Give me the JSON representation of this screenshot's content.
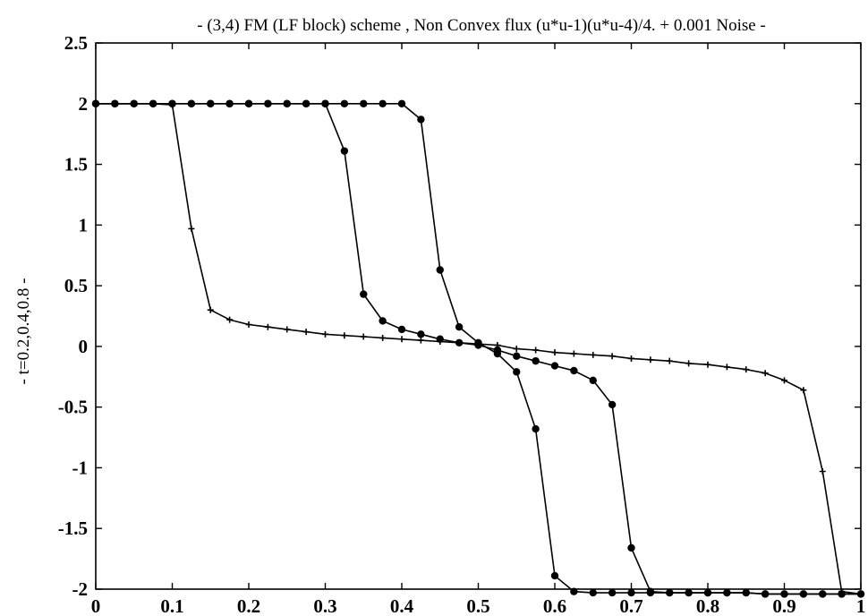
{
  "chart_data": {
    "type": "line",
    "title": "- (3,4) FM (LF block) scheme , Non Convex flux (u*u-1)(u*u-4)/4. + 0.001 Noise -",
    "xlabel": "",
    "ylabel": "- t=0.2,0.4,0.8 -",
    "xlim": [
      0,
      1
    ],
    "ylim": [
      -2,
      2.5
    ],
    "x_ticks": [
      "0",
      "0.1",
      "0.2",
      "0.3",
      "0.4",
      "0.5",
      "0.6",
      "0.7",
      "0.8",
      "0.9",
      "1"
    ],
    "y_ticks": [
      "2.5",
      "2",
      "1.5",
      "1",
      "0.5",
      "0",
      "-0.5",
      "-1",
      "-1.5",
      "-2"
    ],
    "grid": false,
    "series": [
      {
        "marker": "dot",
        "x": [
          0,
          0.025,
          0.05,
          0.075,
          0.1,
          0.125,
          0.15,
          0.175,
          0.2,
          0.225,
          0.25,
          0.275,
          0.3,
          0.325,
          0.35,
          0.375,
          0.4,
          0.425,
          0.45,
          0.475,
          0.5,
          0.525,
          0.55,
          0.575,
          0.6,
          0.625,
          0.65,
          0.675,
          0.7,
          0.725,
          0.75,
          0.775,
          0.8,
          0.825,
          0.85,
          0.875,
          0.9,
          0.925,
          0.95,
          0.975,
          1
        ],
        "y": [
          2,
          2,
          2,
          2,
          2,
          2,
          2,
          2,
          2,
          2,
          2,
          2,
          2,
          2,
          2,
          2,
          2,
          1.87,
          0.63,
          0.16,
          0.03,
          -0.06,
          -0.21,
          -0.68,
          -1.89,
          -2.02,
          -2.03,
          -2.03,
          -2.03,
          -2.03,
          -2.03,
          -2.03,
          -2.03,
          -2.03,
          -2.03,
          -2.04,
          -2.04,
          -2.04,
          -2.04,
          -2.04,
          -2.04
        ]
      },
      {
        "marker": "dot",
        "x": [
          0,
          0.025,
          0.05,
          0.075,
          0.1,
          0.125,
          0.15,
          0.175,
          0.2,
          0.225,
          0.25,
          0.275,
          0.3,
          0.325,
          0.35,
          0.375,
          0.4,
          0.425,
          0.45,
          0.475,
          0.5,
          0.525,
          0.55,
          0.575,
          0.6,
          0.625,
          0.65,
          0.675,
          0.7,
          0.725,
          0.75,
          0.775,
          0.8,
          0.825,
          0.85,
          0.875,
          0.9,
          0.925,
          0.95,
          0.975,
          1
        ],
        "y": [
          2,
          2,
          2,
          2,
          2,
          2,
          2,
          2,
          2,
          2,
          2,
          2,
          2,
          1.61,
          0.43,
          0.21,
          0.14,
          0.1,
          0.06,
          0.03,
          0.01,
          -0.03,
          -0.08,
          -0.12,
          -0.16,
          -0.2,
          -0.28,
          -0.48,
          -1.66,
          -2.02,
          -2.03,
          -2.03,
          -2.03,
          -2.03,
          -2.03,
          -2.04,
          -2.04,
          -2.04,
          -2.04,
          -2.04,
          -2.04
        ]
      },
      {
        "marker": "plus",
        "x": [
          0,
          0.025,
          0.05,
          0.075,
          0.1,
          0.125,
          0.15,
          0.175,
          0.2,
          0.225,
          0.25,
          0.275,
          0.3,
          0.325,
          0.35,
          0.375,
          0.4,
          0.425,
          0.45,
          0.475,
          0.5,
          0.525,
          0.55,
          0.575,
          0.6,
          0.625,
          0.65,
          0.675,
          0.7,
          0.725,
          0.75,
          0.775,
          0.8,
          0.825,
          0.85,
          0.875,
          0.9,
          0.925,
          0.95,
          0.975,
          1
        ],
        "y": [
          2,
          2,
          2,
          2,
          1.99,
          0.97,
          0.3,
          0.22,
          0.18,
          0.16,
          0.14,
          0.12,
          0.1,
          0.09,
          0.08,
          0.07,
          0.06,
          0.05,
          0.04,
          0.03,
          0.02,
          0.01,
          -0.02,
          -0.03,
          -0.05,
          -0.06,
          -0.07,
          -0.08,
          -0.1,
          -0.11,
          -0.12,
          -0.14,
          -0.15,
          -0.17,
          -0.19,
          -0.22,
          -0.28,
          -0.36,
          -1.03,
          -2.02,
          -2.04
        ]
      }
    ]
  }
}
